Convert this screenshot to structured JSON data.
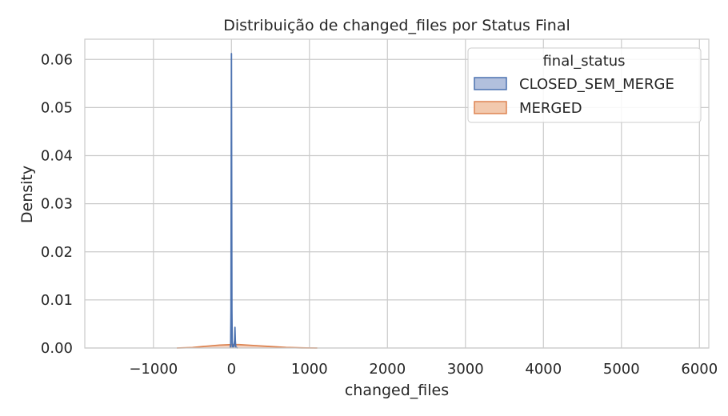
{
  "chart_data": {
    "type": "area",
    "title": "Distribuição de changed_files por Status Final",
    "xlabel": "changed_files",
    "ylabel": "Density",
    "xlim": [
      -1880,
      6120
    ],
    "ylim": [
      0,
      0.0642
    ],
    "xticks": [
      -1000,
      0,
      1000,
      2000,
      3000,
      4000,
      5000,
      6000
    ],
    "xtick_labels": [
      "−1000",
      "0",
      "1000",
      "2000",
      "3000",
      "4000",
      "5000",
      "6000"
    ],
    "yticks": [
      0.0,
      0.01,
      0.02,
      0.03,
      0.04,
      0.05,
      0.06
    ],
    "ytick_labels": [
      "0.00",
      "0.01",
      "0.02",
      "0.03",
      "0.04",
      "0.05",
      "0.06"
    ],
    "grid": true,
    "legend": {
      "title": "final_status",
      "placement": "top-right"
    },
    "series": [
      {
        "name": "CLOSED_SEM_MERGE",
        "color": "#4c72b0",
        "fill": "#b2c0dd",
        "x": [
          -15,
          -10,
          -6,
          -3,
          0,
          3,
          6,
          10,
          15,
          20,
          30,
          40,
          45,
          50,
          55,
          60,
          80
        ],
        "y": [
          0,
          0.0008,
          0.008,
          0.035,
          0.0612,
          0.035,
          0.008,
          0.001,
          0.0003,
          0.0002,
          0.0004,
          0.0015,
          0.0043,
          0.0015,
          0.0003,
          0.0001,
          0
        ]
      },
      {
        "name": "MERGED",
        "color": "#dd8452",
        "fill": "#f2c9ae",
        "x": [
          -700,
          -500,
          -300,
          -150,
          0,
          100,
          200,
          300,
          500,
          700,
          900,
          1100
        ],
        "y": [
          0,
          0.0001,
          0.0004,
          0.0006,
          0.0007,
          0.0007,
          0.0006,
          0.0005,
          0.0003,
          0.00012,
          3e-05,
          0
        ]
      }
    ]
  }
}
